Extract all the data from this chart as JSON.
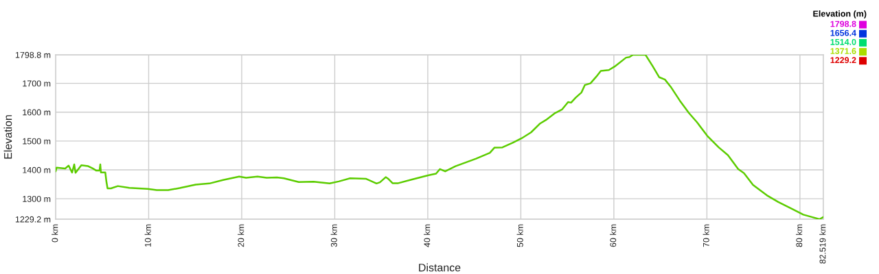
{
  "chart_data": {
    "type": "line",
    "xlabel": "Distance",
    "ylabel": "Elevation",
    "clabel": "Elevation (m)",
    "x": [
      0,
      0.1,
      1.03,
      1.4,
      1.77,
      2.0,
      2.14,
      2.76,
      3.5,
      3.99,
      4.35,
      4.72,
      4.8,
      4.87,
      5.34,
      5.46,
      5.58,
      5.95,
      6.69,
      7.92,
      9.89,
      10.87,
      12.1,
      13.34,
      15.06,
      16.53,
      18.0,
      19.73,
      20.47,
      21.7,
      22.68,
      23.79,
      24.53,
      26.13,
      27.73,
      29.45,
      30.43,
      31.66,
      33.38,
      34.49,
      34.86,
      35.48,
      35.72,
      36.21,
      36.83,
      38.31,
      40.03,
      40.89,
      41.31,
      41.87,
      42.98,
      45.19,
      46.67,
      47.16,
      48.02,
      49.13,
      50.11,
      51.1,
      52.08,
      52.7,
      53.68,
      54.42,
      55.08,
      55.4,
      55.89,
      56.51,
      56.88,
      57.49,
      58.11,
      58.6,
      59.46,
      60.08,
      61.31,
      61.68,
      62.05,
      63.4,
      64.14,
      64.88,
      65.49,
      66.11,
      67.09,
      68.07,
      68.94,
      70.04,
      71.27,
      72.26,
      73.36,
      73.98,
      74.96,
      76.44,
      77.67,
      79.14,
      80.37,
      81.36,
      82.1,
      82.519
    ],
    "values": [
      1395,
      1408,
      1405,
      1415,
      1391,
      1419,
      1390,
      1416,
      1413,
      1405,
      1398,
      1398,
      1419,
      1391,
      1391,
      1359,
      1336,
      1336,
      1344,
      1338,
      1334,
      1330,
      1330,
      1337,
      1349,
      1353,
      1365,
      1377,
      1373,
      1377,
      1373,
      1374,
      1371,
      1358,
      1359,
      1353,
      1360,
      1371,
      1369,
      1353,
      1357,
      1375,
      1370,
      1354,
      1354,
      1367,
      1381,
      1387,
      1403,
      1395,
      1413,
      1439,
      1459,
      1477,
      1478,
      1494,
      1510,
      1530,
      1561,
      1573,
      1597,
      1609,
      1635,
      1633,
      1650,
      1668,
      1694,
      1700,
      1723,
      1743,
      1746,
      1758,
      1789,
      1791,
      1798.8,
      1798.8,
      1761,
      1721,
      1713,
      1688,
      1640,
      1597,
      1565,
      1518,
      1478,
      1451,
      1403,
      1389,
      1348,
      1312,
      1289,
      1265,
      1245,
      1236,
      1229.2,
      1237
    ],
    "color": "#5ccc00",
    "xlim": [
      0,
      82.519
    ],
    "xticks": [
      {
        "value": 0,
        "label": "0 km"
      },
      {
        "value": 10,
        "label": "10 km"
      },
      {
        "value": 20,
        "label": "20 km"
      },
      {
        "value": 30,
        "label": "30 km"
      },
      {
        "value": 40,
        "label": "40 km"
      },
      {
        "value": 50,
        "label": "50 km"
      },
      {
        "value": 60,
        "label": "60 km"
      },
      {
        "value": 70,
        "label": "70 km"
      },
      {
        "value": 80,
        "label": "80 km"
      },
      {
        "value": 82.519,
        "label": "82.519 km"
      }
    ],
    "ylim": [
      1229.2,
      1798.8
    ],
    "yticks": [
      {
        "value": 1229.2,
        "label": "1229.2 m"
      },
      {
        "value": 1300,
        "label": "1300 m"
      },
      {
        "value": 1400,
        "label": "1400 m"
      },
      {
        "value": 1500,
        "label": "1500 m"
      },
      {
        "value": 1600,
        "label": "1600 m"
      },
      {
        "value": 1700,
        "label": "1700 m"
      },
      {
        "value": 1798.8,
        "label": "1798.8 m"
      }
    ],
    "cticks": [
      {
        "value": 1798.8,
        "label": "1798.8"
      },
      {
        "value": 1656.4,
        "label": "1656.4"
      },
      {
        "value": 1514,
        "label": "1514.0"
      },
      {
        "value": 1371.6,
        "label": "1371.6"
      },
      {
        "value": 1229.2,
        "label": "1229.2"
      }
    ],
    "grid": true
  }
}
